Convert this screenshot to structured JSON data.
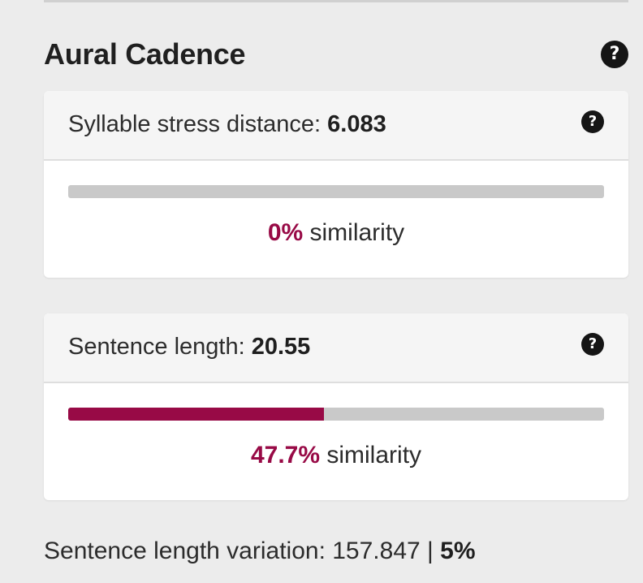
{
  "section": {
    "title": "Aural Cadence",
    "help_icon": "question-circle-icon"
  },
  "metrics": [
    {
      "label": "Syllable stress distance: ",
      "value": "6.083",
      "similarity_pct": "0%",
      "similarity_label": " similarity",
      "similarity_fraction": 0.0,
      "help_icon": "question-circle-icon"
    },
    {
      "label": "Sentence length: ",
      "value": "20.55",
      "similarity_pct": "47.7%",
      "similarity_label": " similarity",
      "similarity_fraction": 0.477,
      "help_icon": "question-circle-icon"
    }
  ],
  "variation": {
    "label": "Sentence length variation: 157.847 | ",
    "pct": "5%"
  },
  "colors": {
    "accent": "#980a46",
    "track": "#c9c9c9",
    "background": "#ececec"
  }
}
